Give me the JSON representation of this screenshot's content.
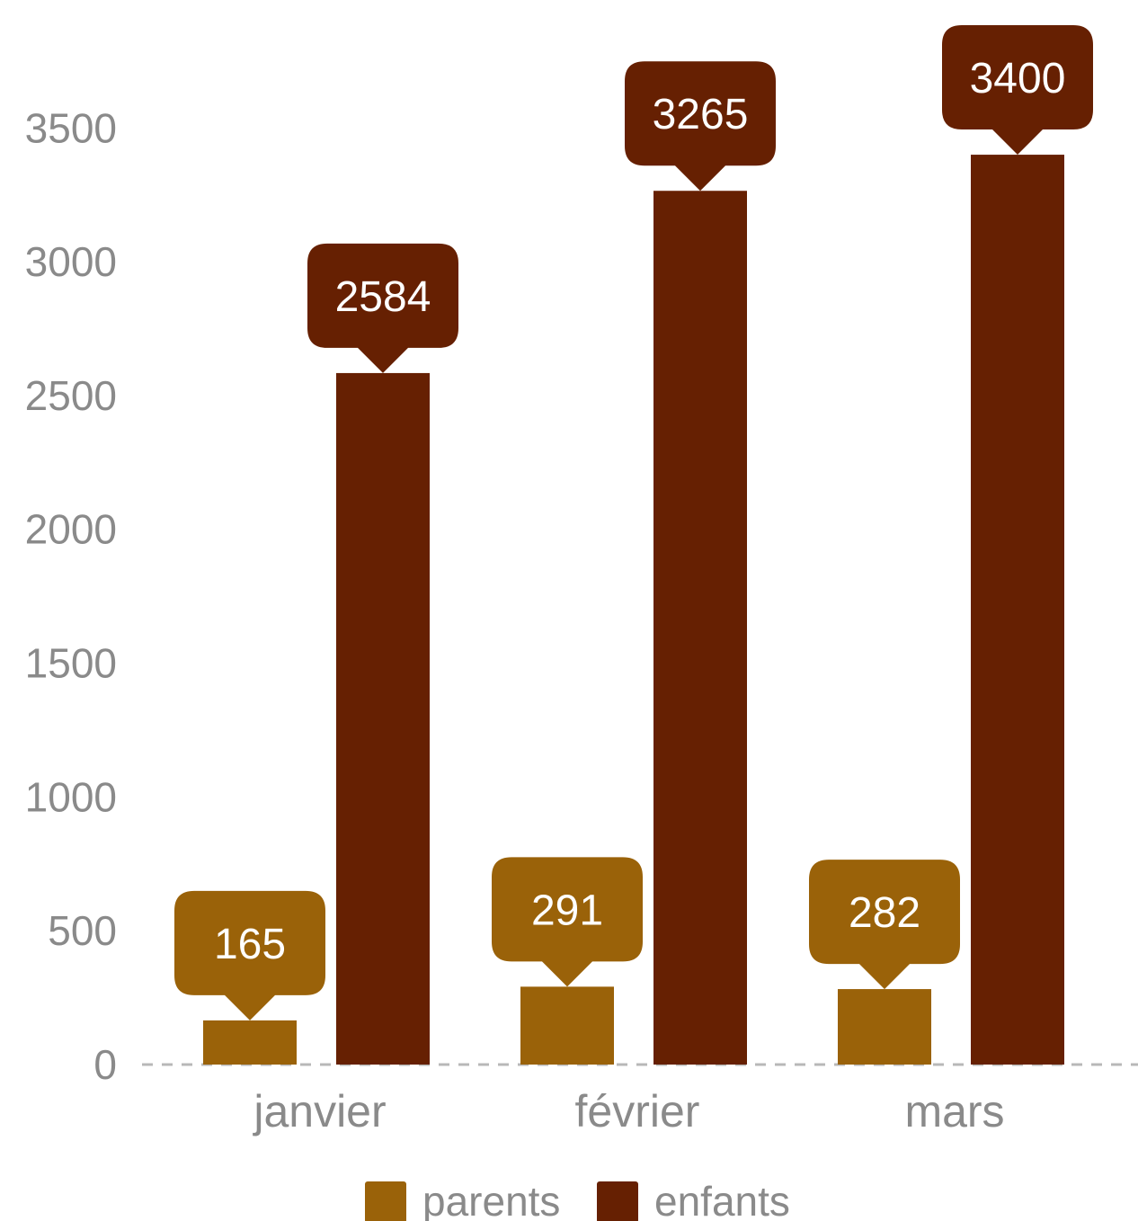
{
  "chart_data": {
    "type": "bar",
    "categories": [
      "janvier",
      "février",
      "mars"
    ],
    "series": [
      {
        "name": "parents",
        "color": "#9a6209",
        "values": [
          165,
          291,
          282
        ]
      },
      {
        "name": "enfants",
        "color": "#662002",
        "values": [
          2584,
          3265,
          3400
        ]
      }
    ],
    "yticks": [
      0,
      500,
      1000,
      1500,
      2000,
      2500,
      3000,
      3500
    ],
    "ylim": [
      0,
      3500
    ],
    "data_labels": true,
    "legend": "bottom-center",
    "grid": false,
    "baseline_style": "dashed"
  }
}
